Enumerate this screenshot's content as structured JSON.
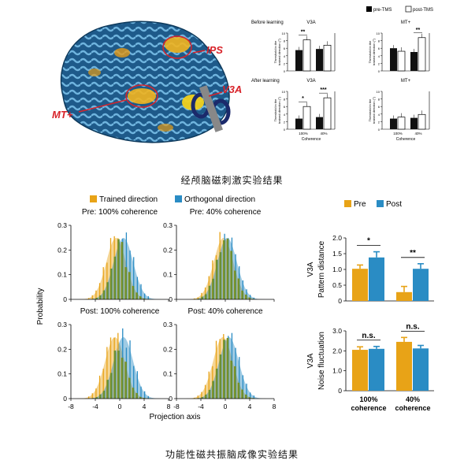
{
  "captions": {
    "tms": "经颅脑磁刺激实验结果",
    "fmri": "功能性磁共振脑成像实验结果"
  },
  "brain": {
    "labels": [
      "IPS",
      "MT+",
      "V3A"
    ]
  },
  "tms_panel": {
    "legend": [
      "pre-TMS",
      "post-TMS"
    ],
    "rows": [
      {
        "label": "Before learning",
        "panels": [
          {
            "title": "V3A",
            "pre": [
              5.5,
              5.8
            ],
            "post": [
              8.2,
              6.8
            ],
            "sig": [
              "**",
              ""
            ]
          },
          {
            "title": "MT+",
            "pre": [
              6.0,
              5.0
            ],
            "post": [
              5.2,
              8.8
            ],
            "sig": [
              "",
              "**"
            ]
          }
        ]
      },
      {
        "label": "After learning",
        "panels": [
          {
            "title": "V3A",
            "pre": [
              2.8,
              3.2
            ],
            "post": [
              6.0,
              8.3
            ],
            "sig": [
              "*",
              "***"
            ]
          },
          {
            "title": "MT+",
            "pre": [
              2.8,
              3.0
            ],
            "post": [
              3.2,
              3.9
            ],
            "sig": [
              "",
              ""
            ]
          }
        ]
      }
    ],
    "ylabel": "Threshold in the\ntrained direction (°)",
    "y2label": "",
    "xticks": [
      "100%",
      "40%"
    ],
    "xlabel": "Coherence"
  },
  "fmri_panel": {
    "legend": [
      "Trained direction",
      "Orthogonal direction"
    ],
    "colors": {
      "trained": "#E8A317",
      "orthogonal": "#2A8CC4",
      "overlap": "#6B8E23"
    },
    "ylabel": "Probability",
    "xlabel": "Projection axis",
    "titles": [
      "Pre: 100% coherence",
      "Pre: 40% coherence",
      "Post: 100% coherence",
      "Post: 40% coherence"
    ],
    "yticks": [
      "0",
      "0.1",
      "0.2",
      "0.3"
    ],
    "xticks": [
      "-8",
      "-4",
      "0",
      "4",
      "8"
    ]
  },
  "chart_data": [
    {
      "type": "bar",
      "ylabel": "Pattern distance",
      "row_label": "V3A",
      "categories": [
        "100%\ncoherence",
        "40%\ncoherence"
      ],
      "series": [
        {
          "name": "Pre",
          "values": [
            1.02,
            0.28
          ],
          "errors": [
            0.12,
            0.18
          ]
        },
        {
          "name": "Post",
          "values": [
            1.38,
            1.02
          ],
          "errors": [
            0.18,
            0.16
          ]
        }
      ],
      "ylim": [
        0,
        2.0
      ],
      "yticks": [
        "0",
        "0.5",
        "1.0",
        "1.5",
        "2.0"
      ],
      "sig": [
        "*",
        "**"
      ]
    },
    {
      "type": "bar",
      "ylabel": "Noise fluctuation",
      "row_label": "V3A",
      "categories": [
        "100%\ncoherence",
        "40%\ncoherence"
      ],
      "series": [
        {
          "name": "Pre",
          "values": [
            2.05,
            2.45
          ],
          "errors": [
            0.15,
            0.22
          ]
        },
        {
          "name": "Post",
          "values": [
            2.1,
            2.12
          ],
          "errors": [
            0.12,
            0.15
          ]
        }
      ],
      "ylim": [
        0,
        3.0
      ],
      "yticks": [
        "0",
        "1.0",
        "2.0",
        "3.0"
      ],
      "sig": [
        "n.s.",
        "n.s."
      ]
    }
  ]
}
